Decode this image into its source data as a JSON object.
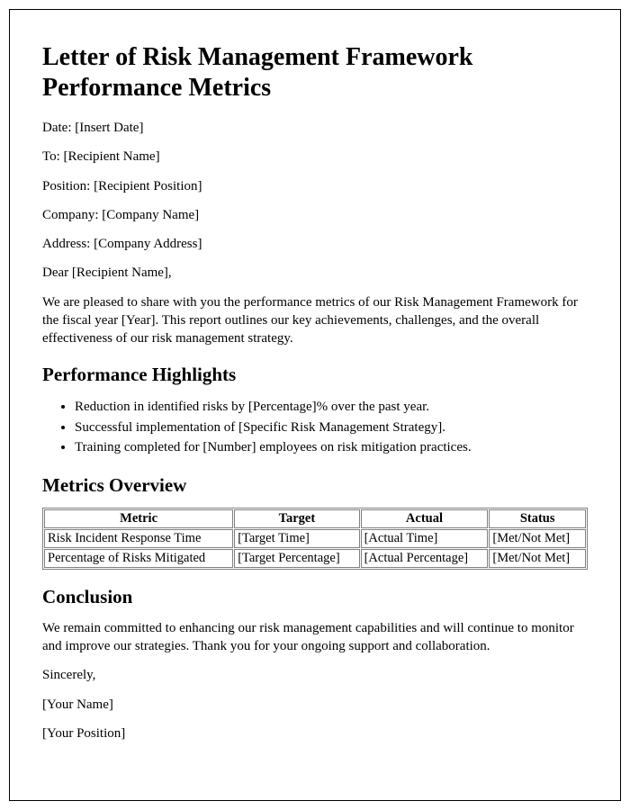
{
  "title": "Letter of Risk Management Framework Performance Metrics",
  "fields": {
    "date_label": "Date: ",
    "date_value": "[Insert Date]",
    "to_label": "To: ",
    "to_value": "[Recipient Name]",
    "position_label": "Position: ",
    "position_value": "[Recipient Position]",
    "company_label": "Company: ",
    "company_value": "[Company Name]",
    "address_label": "Address: ",
    "address_value": "[Company Address]"
  },
  "salutation": "Dear [Recipient Name],",
  "intro": "We are pleased to share with you the performance metrics of our Risk Management Framework for the fiscal year [Year]. This report outlines our key achievements, challenges, and the overall effectiveness of our risk management strategy.",
  "highlights_heading": "Performance Highlights",
  "highlights": {
    "b0": "Reduction in identified risks by [Percentage]% over the past year.",
    "b1": "Successful implementation of [Specific Risk Management Strategy].",
    "b2": "Training completed for [Number] employees on risk mitigation practices."
  },
  "metrics_heading": "Metrics Overview",
  "table": {
    "headers": {
      "c0": "Metric",
      "c1": "Target",
      "c2": "Actual",
      "c3": "Status"
    },
    "r0": {
      "c0": "Risk Incident Response Time",
      "c1": "[Target Time]",
      "c2": "[Actual Time]",
      "c3": "[Met/Not Met]"
    },
    "r1": {
      "c0": "Percentage of Risks Mitigated",
      "c1": "[Target Percentage]",
      "c2": "[Actual Percentage]",
      "c3": "[Met/Not Met]"
    }
  },
  "conclusion_heading": "Conclusion",
  "conclusion": "We remain committed to enhancing our risk management capabilities and will continue to monitor and improve our strategies. Thank you for your ongoing support and collaboration.",
  "signoff": "Sincerely,",
  "sender_name": "[Your Name]",
  "sender_position": "[Your Position]"
}
